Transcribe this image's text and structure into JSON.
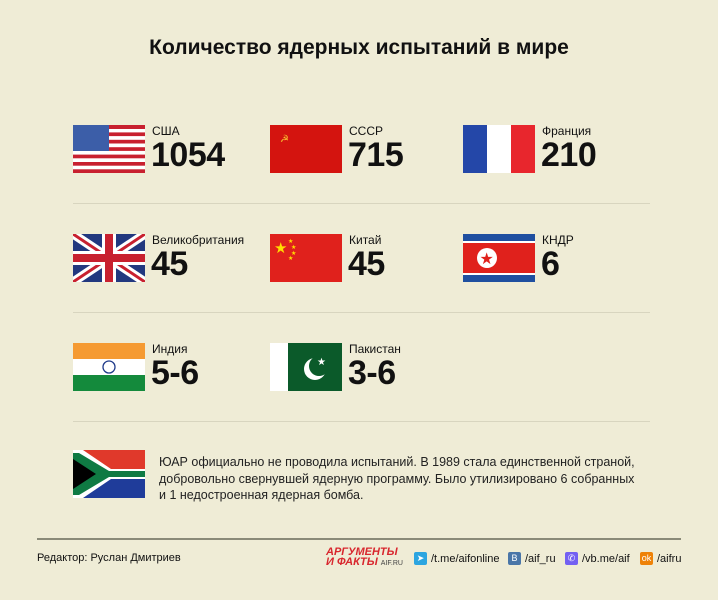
{
  "title": "Количество ядерных испытаний в мире",
  "countries": [
    {
      "name": "США",
      "value": "1054",
      "flag": "usa-flag"
    },
    {
      "name": "СССР",
      "value": "715",
      "flag": "ussr-flag"
    },
    {
      "name": "Франция",
      "value": "210",
      "flag": "france-flag"
    },
    {
      "name": "Великобритания",
      "value": "45",
      "flag": "uk-flag"
    },
    {
      "name": "Китай",
      "value": "45",
      "flag": "china-flag"
    },
    {
      "name": "КНДР",
      "value": "6",
      "flag": "dprk-flag"
    },
    {
      "name": "Индия",
      "value": "5-6",
      "flag": "india-flag"
    },
    {
      "name": "Пакистан",
      "value": "3-6",
      "flag": "pakistan-flag"
    }
  ],
  "note": {
    "flag": "south-africa-flag",
    "text": "ЮАР официально не проводила испытаний. В 1989 стала единственной страной, добровольно свернувшей ядерную программу. Было утилизировано 6 собранных и 1 недостроенная ядерная бомба."
  },
  "footer": {
    "editor": "Редактор: Руслан Дмитриев",
    "logo_line1": "АРГУМЕНТЫ",
    "logo_line2": "И ФАКТЫ",
    "logo_site": "AIF.RU",
    "links": [
      {
        "icon": "telegram-icon",
        "label": "/t.me/aifonline",
        "color": "#2ca5e0"
      },
      {
        "icon": "vk-icon",
        "label": "/aif_ru",
        "color": "#4a76a8"
      },
      {
        "icon": "viber-icon",
        "label": "/vb.me/aif",
        "color": "#7360f2"
      },
      {
        "icon": "odnoklassniki-icon",
        "label": "/aifru",
        "color": "#ee8208"
      }
    ]
  }
}
